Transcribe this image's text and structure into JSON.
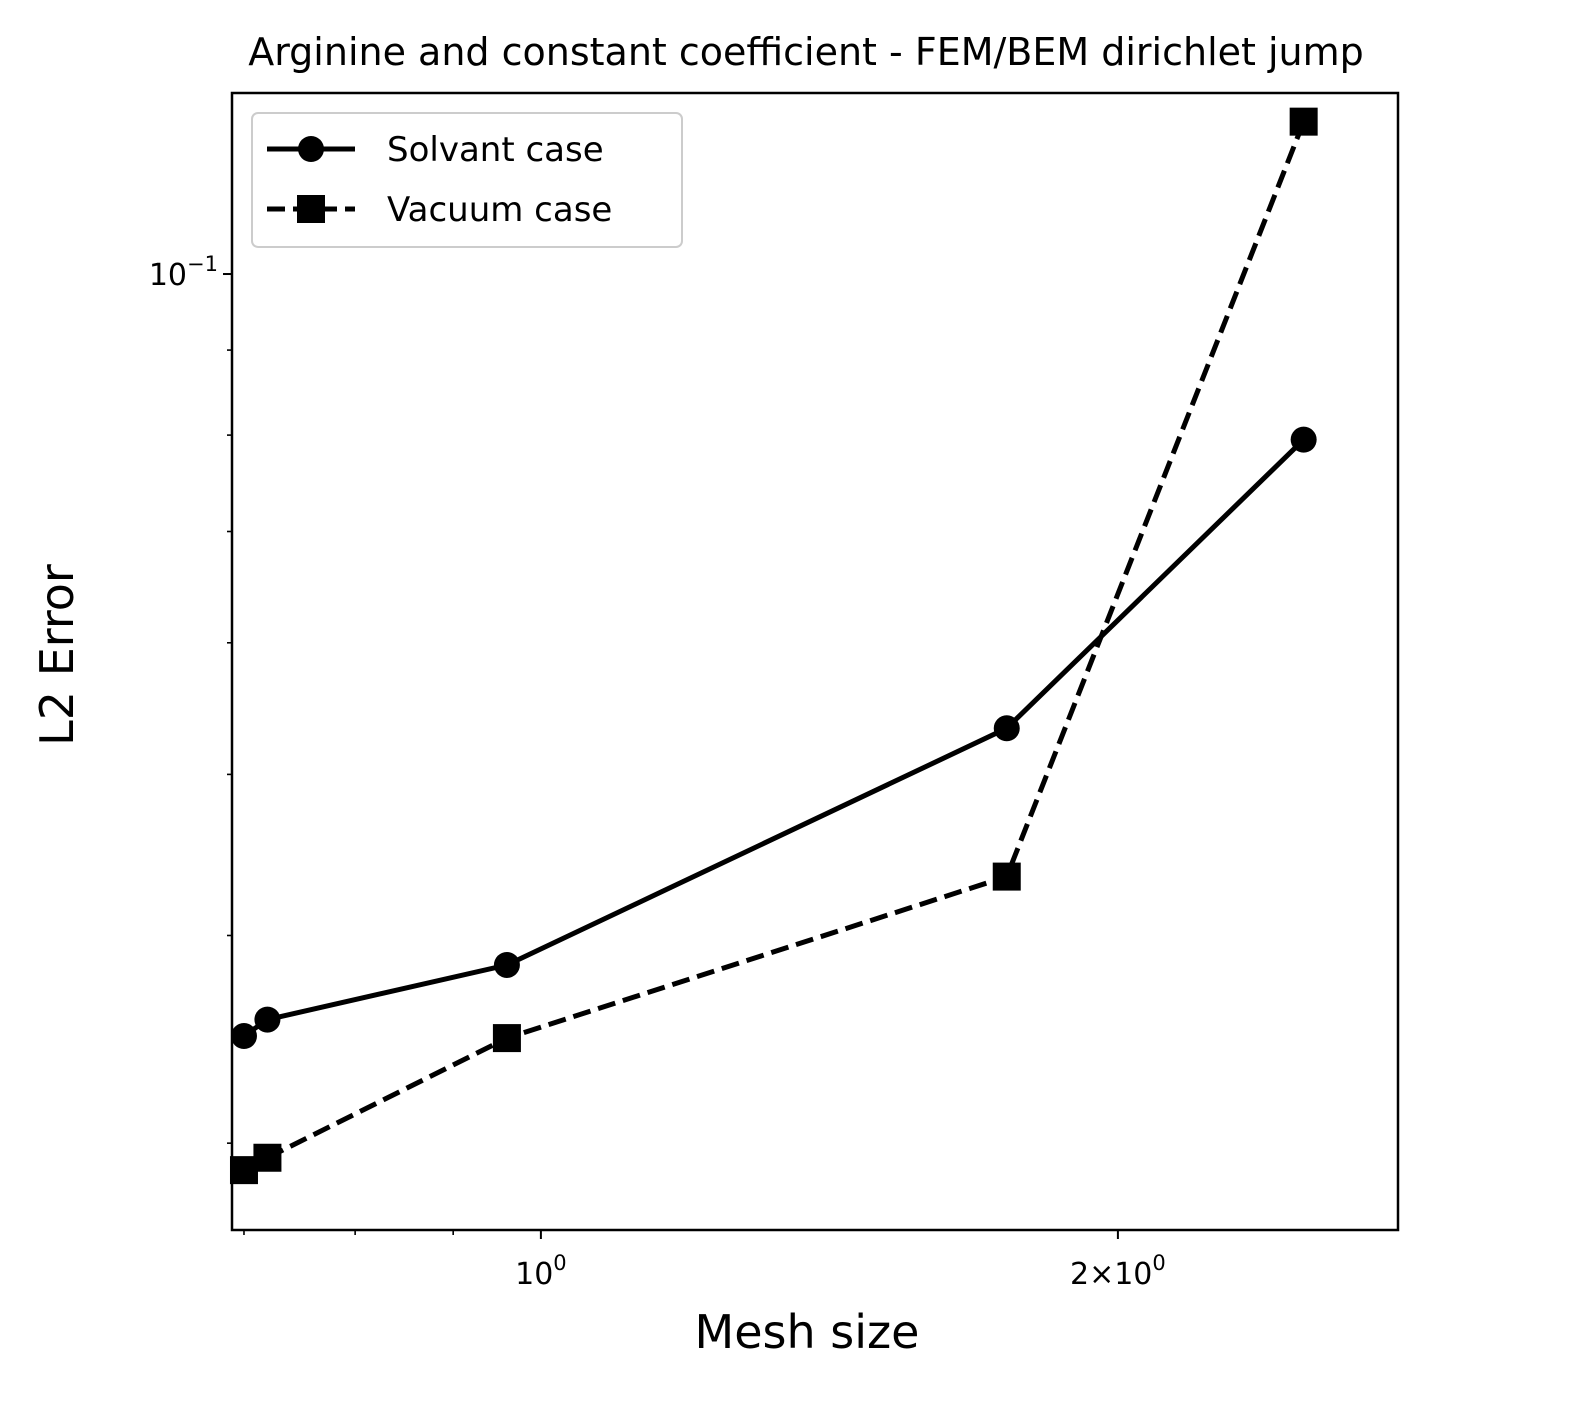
{
  "chart_data": {
    "type": "line",
    "title": "Arginine and constant coefficient - FEM/BEM dirichlet jump",
    "xlabel": "Mesh size",
    "ylabel": "L2 Error",
    "xscale": "log",
    "yscale": "log",
    "xlim": [
      0.69,
      2.8
    ],
    "ylim": [
      0.0266,
      0.1285
    ],
    "grid": false,
    "legend_position": "top-left",
    "x_ticks": [
      {
        "value": 1.0,
        "label": "10",
        "exp": "0"
      },
      {
        "value": 2.0,
        "label": "2×10",
        "exp": "0"
      }
    ],
    "x_minor_ticks": [
      0.7,
      0.8,
      0.9
    ],
    "y_ticks": [
      {
        "value": 0.1,
        "label": "10",
        "exp": "−1"
      }
    ],
    "y_minor_ticks": [
      0.03,
      0.04,
      0.05,
      0.06,
      0.07,
      0.08,
      0.09
    ],
    "series": [
      {
        "name": "Solvant case",
        "marker": "circle",
        "linestyle": "solid",
        "color": "#000000",
        "x": [
          0.7,
          0.72,
          0.96,
          1.75,
          2.5
        ],
        "y": [
          0.0348,
          0.0356,
          0.0384,
          0.0533,
          0.0795
        ]
      },
      {
        "name": "Vacuum case",
        "marker": "square",
        "linestyle": "dashed",
        "color": "#000000",
        "x": [
          0.7,
          0.72,
          0.96,
          1.75,
          2.5
        ],
        "y": [
          0.0289,
          0.0294,
          0.0347,
          0.0434,
          0.1235
        ]
      }
    ]
  }
}
